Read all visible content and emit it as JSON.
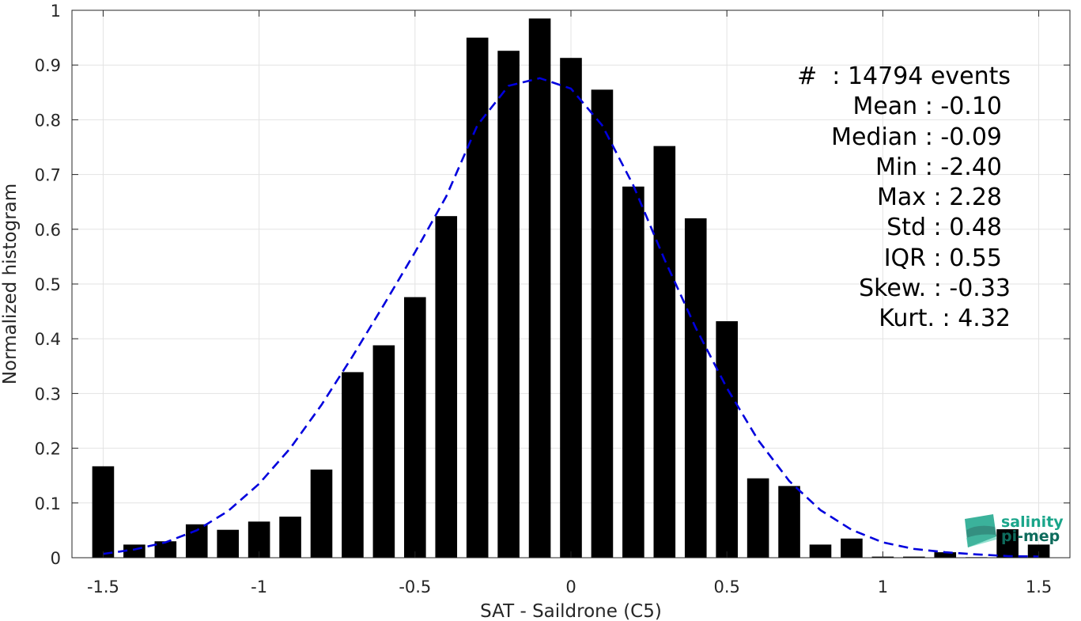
{
  "chart_data": {
    "type": "bar",
    "xlabel": "SAT - Saildrone (C5)",
    "ylabel": "Normalized histogram",
    "xlim": [
      -1.6,
      1.6
    ],
    "ylim": [
      0,
      1
    ],
    "xticks": [
      -1.5,
      -1,
      -0.5,
      0,
      0.5,
      1,
      1.5
    ],
    "xtick_labels": [
      "-1.5",
      "-1",
      "-0.5",
      "0",
      "0.5",
      "1",
      "1.5"
    ],
    "yticks": [
      0,
      0.1,
      0.2,
      0.3,
      0.4,
      0.5,
      0.6,
      0.7,
      0.8,
      0.9,
      1
    ],
    "ytick_labels": [
      "0",
      "0.1",
      "0.2",
      "0.3",
      "0.4",
      "0.5",
      "0.6",
      "0.7",
      "0.8",
      "0.9",
      "1"
    ],
    "grid": true,
    "bar_width": 0.07,
    "x": [
      -1.5,
      -1.4,
      -1.3,
      -1.2,
      -1.1,
      -1.0,
      -0.9,
      -0.8,
      -0.7,
      -0.6,
      -0.5,
      -0.4,
      -0.3,
      -0.2,
      -0.1,
      0.0,
      0.1,
      0.2,
      0.3,
      0.4,
      0.5,
      0.6,
      0.7,
      0.8,
      0.9,
      1.0,
      1.1,
      1.2,
      1.3,
      1.4,
      1.5
    ],
    "values": [
      0.167,
      0.024,
      0.03,
      0.061,
      0.051,
      0.066,
      0.075,
      0.161,
      0.339,
      0.388,
      0.476,
      0.624,
      0.95,
      0.926,
      0.985,
      0.913,
      0.855,
      0.678,
      0.752,
      0.62,
      0.432,
      0.145,
      0.131,
      0.024,
      0.035,
      0.002,
      0.002,
      0.01,
      0.001,
      0.052,
      0.024
    ],
    "fit_line": {
      "style": "dashed",
      "color": "#0000dd",
      "x": [
        -1.5,
        -1.4,
        -1.3,
        -1.2,
        -1.1,
        -1.0,
        -0.9,
        -0.8,
        -0.7,
        -0.6,
        -0.5,
        -0.4,
        -0.3,
        -0.2,
        -0.1,
        0.0,
        0.1,
        0.2,
        0.3,
        0.4,
        0.5,
        0.6,
        0.7,
        0.8,
        0.9,
        1.0,
        1.1,
        1.2,
        1.3,
        1.4,
        1.5
      ],
      "y": [
        0.007,
        0.015,
        0.028,
        0.05,
        0.085,
        0.135,
        0.2,
        0.279,
        0.368,
        0.462,
        0.558,
        0.66,
        0.79,
        0.862,
        0.876,
        0.857,
        0.79,
        0.68,
        0.545,
        0.42,
        0.31,
        0.215,
        0.14,
        0.087,
        0.051,
        0.028,
        0.016,
        0.01,
        0.006,
        0.003,
        0.002
      ]
    },
    "bar_color": "#000000"
  },
  "stats": [
    "#  : 14794 events",
    "Mean : -0.10",
    "Median : -0.09",
    "Min : -2.40",
    "Max : 2.28",
    "Std : 0.48",
    "IQR : 0.55",
    "Skew. : -0.33",
    "Kurt. : 4.32"
  ],
  "logo": {
    "line1": "salinity",
    "line2": "pi-mep",
    "colors": [
      "#1aa58a",
      "#0e6b5c"
    ]
  }
}
